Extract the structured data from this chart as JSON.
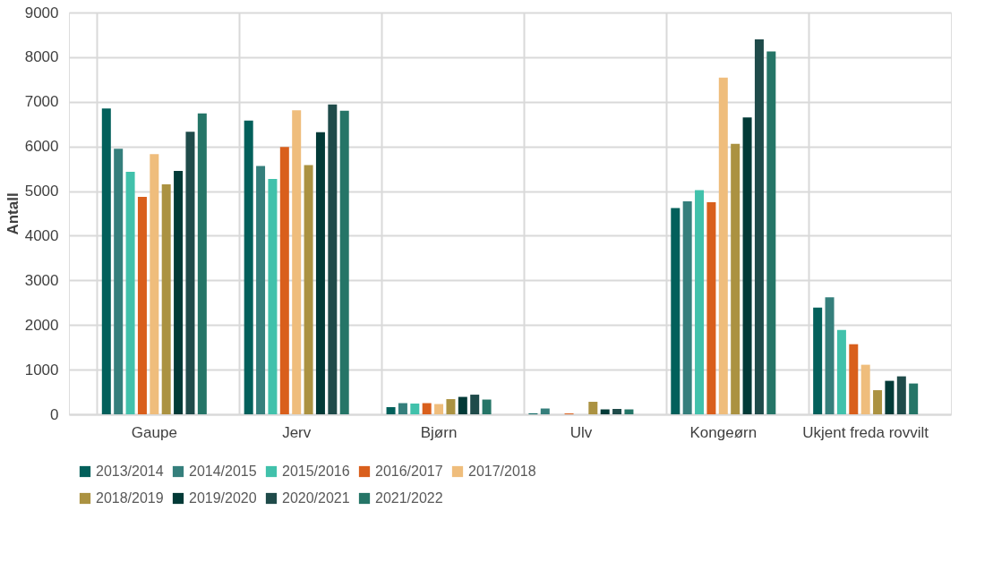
{
  "chart_data": {
    "type": "bar",
    "ylabel": "Antall",
    "categories": [
      "Gaupe",
      "Jerv",
      "Bjørn",
      "Ulv",
      "Kongeørn",
      "Ukjent freda rovvilt"
    ],
    "series": [
      {
        "name": "2013/2014",
        "color": "#02605b",
        "values": [
          6850,
          6580,
          160,
          20,
          4620,
          2390
        ]
      },
      {
        "name": "2014/2015",
        "color": "#357f7c",
        "values": [
          5950,
          5560,
          250,
          130,
          4770,
          2620
        ]
      },
      {
        "name": "2015/2016",
        "color": "#41c1ab",
        "values": [
          5430,
          5270,
          240,
          0,
          5020,
          1890
        ]
      },
      {
        "name": "2016/2017",
        "color": "#d95f1c",
        "values": [
          4870,
          5990,
          250,
          20,
          4750,
          1570
        ]
      },
      {
        "name": "2017/2018",
        "color": "#efbd7c",
        "values": [
          5830,
          6810,
          230,
          0,
          7540,
          1110
        ]
      },
      {
        "name": "2018/2019",
        "color": "#ab9241",
        "values": [
          5150,
          5580,
          340,
          280,
          6060,
          540
        ]
      },
      {
        "name": "2019/2020",
        "color": "#023a37",
        "values": [
          5450,
          6320,
          390,
          110,
          6650,
          750
        ]
      },
      {
        "name": "2020/2021",
        "color": "#1f4b4a",
        "values": [
          6330,
          6940,
          440,
          120,
          8400,
          850
        ]
      },
      {
        "name": "2021/2022",
        "color": "#257567",
        "values": [
          6740,
          6800,
          330,
          110,
          8130,
          690
        ]
      }
    ],
    "ylim": [
      0,
      9000
    ],
    "yticks": [
      0,
      1000,
      2000,
      3000,
      4000,
      5000,
      6000,
      7000,
      8000,
      9000
    ],
    "grid": true,
    "legend": "bottom"
  }
}
